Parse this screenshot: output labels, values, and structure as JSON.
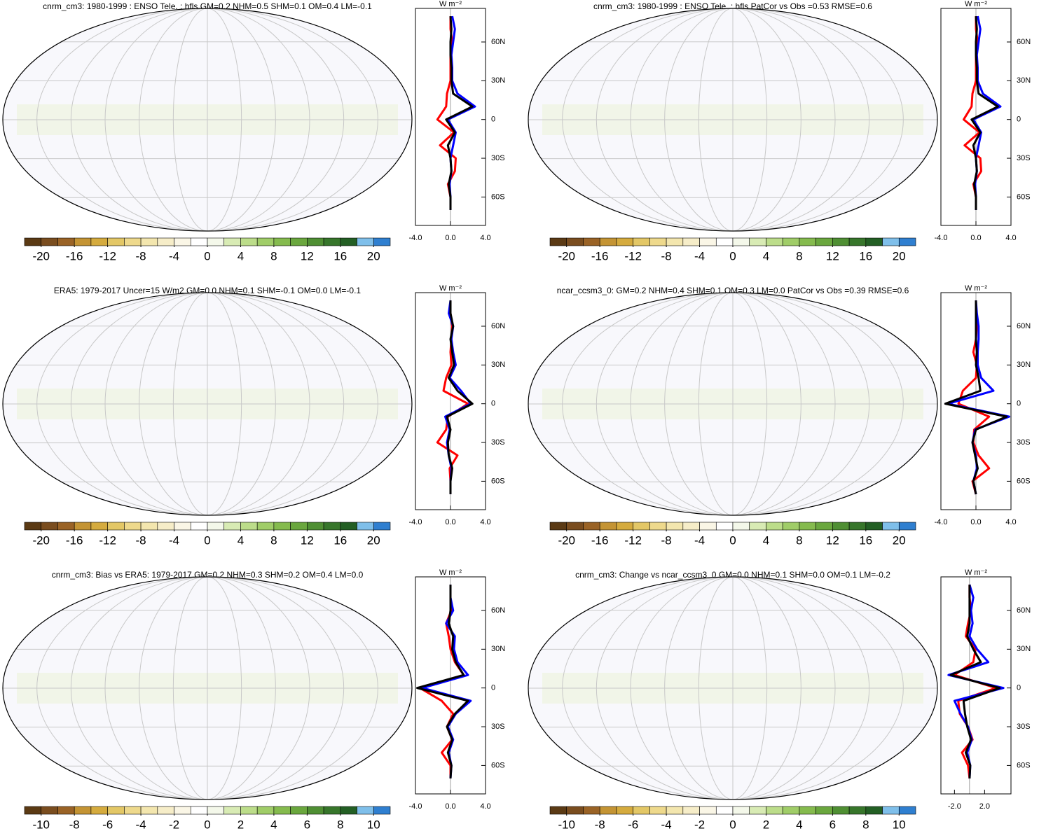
{
  "chart_data": [
    {
      "type": "line",
      "title": "cnrm_cm3: 1980-1999 : ENSO Tele. : hfls GM=0.2 NHM=0.5 SHM=0.1 OM=0.4 LM=-0.1",
      "units": "W m⁻²",
      "lat": [
        -70,
        -60,
        -50,
        -40,
        -30,
        -20,
        -10,
        0,
        10,
        20,
        30,
        40,
        50,
        60,
        70,
        80
      ],
      "series": [
        {
          "color": "#ff0000",
          "values": [
            0,
            0,
            -0.3,
            0.5,
            0.6,
            -1.2,
            0.4,
            -1.5,
            -0.5,
            -0.4,
            0,
            0,
            0,
            0.2,
            0,
            0
          ]
        },
        {
          "color": "#0000ff",
          "values": [
            0,
            0,
            -0.1,
            0.1,
            0,
            0.3,
            0.6,
            -0.3,
            2.8,
            0.8,
            0.2,
            0.2,
            0.1,
            0.3,
            0.5,
            0.2
          ]
        },
        {
          "color": "#000000",
          "values": [
            0,
            0,
            -0.2,
            0.1,
            0,
            -0.3,
            0.5,
            -0.5,
            2.5,
            0.3,
            0.1,
            0.1,
            0,
            0,
            0.1,
            0
          ]
        }
      ],
      "xlim": [
        -4,
        4
      ],
      "xticks": [
        {
          "value": -4,
          "label": "-4.0"
        },
        {
          "value": 0,
          "label": "0.0"
        },
        {
          "value": 4,
          "label": "4.0"
        }
      ],
      "ylim": [
        -82,
        86
      ],
      "yticks": [
        {
          "value": 60,
          "label": "60N"
        },
        {
          "value": 30,
          "label": "30N"
        },
        0,
        {
          "value": -30,
          "label": "30S"
        },
        {
          "value": -60,
          "label": "60S"
        }
      ],
      "colorbar": {
        "lim": [
          -22,
          22
        ],
        "ticks": [
          -20,
          -16,
          -12,
          -8,
          -4,
          0,
          4,
          8,
          12,
          16,
          20
        ],
        "colors": [
          "#5b3a14",
          "#7a4d1f",
          "#9a6326",
          "#c49434",
          "#d5ab3e",
          "#e3c766",
          "#eed98c",
          "#f3e6ae",
          "#f6edc8",
          "#faf6e6",
          "#ffffff",
          "#f4f8ea",
          "#d8ebb4",
          "#bcdd8a",
          "#a0cd68",
          "#85bb4e",
          "#6aa73e",
          "#4f8f33",
          "#37762b",
          "#235f24",
          "#7fbfea",
          "#2f7fd0"
        ]
      }
    },
    {
      "type": "line",
      "title": "cnrm_cm3: 1980-1999 : ENSO Tele. : hfls PatCor vs Obs =0.53 RMSE=0.6",
      "units": "W m⁻²",
      "lat": [
        -70,
        -60,
        -50,
        -40,
        -30,
        -20,
        -10,
        0,
        10,
        20,
        30,
        40,
        50,
        60,
        70,
        80
      ],
      "series": [
        {
          "color": "#ff0000",
          "values": [
            0,
            0,
            -0.3,
            0.6,
            0.5,
            -1.3,
            0.4,
            -1.4,
            -0.5,
            -0.4,
            0,
            0,
            0,
            0.2,
            0,
            0
          ]
        },
        {
          "color": "#0000ff",
          "values": [
            0,
            0,
            -0.1,
            0.1,
            0,
            0.3,
            0.6,
            -0.3,
            2.8,
            0.8,
            0.2,
            0.2,
            0.1,
            0.3,
            0.5,
            0.2
          ]
        },
        {
          "color": "#000000",
          "values": [
            0,
            0,
            -0.2,
            0.1,
            0,
            -0.3,
            0.5,
            -0.5,
            2.5,
            0.3,
            0.1,
            0.1,
            0,
            0,
            0.1,
            0
          ]
        }
      ],
      "xlim": [
        -4,
        4
      ],
      "xticks": [
        {
          "value": -4,
          "label": "-4.0"
        },
        {
          "value": 0,
          "label": "0.0"
        },
        {
          "value": 4,
          "label": "4.0"
        }
      ],
      "ylim": [
        -82,
        86
      ],
      "yticks": [
        {
          "value": 60,
          "label": "60N"
        },
        {
          "value": 30,
          "label": "30N"
        },
        0,
        {
          "value": -30,
          "label": "30S"
        },
        {
          "value": -60,
          "label": "60S"
        }
      ],
      "colorbar": {
        "lim": [
          -22,
          22
        ],
        "ticks": [
          -20,
          -16,
          -12,
          -8,
          -4,
          0,
          4,
          8,
          12,
          16,
          20
        ],
        "colors": [
          "#5b3a14",
          "#7a4d1f",
          "#9a6326",
          "#c49434",
          "#d5ab3e",
          "#e3c766",
          "#eed98c",
          "#f3e6ae",
          "#f6edc8",
          "#faf6e6",
          "#ffffff",
          "#f4f8ea",
          "#d8ebb4",
          "#bcdd8a",
          "#a0cd68",
          "#85bb4e",
          "#6aa73e",
          "#4f8f33",
          "#37762b",
          "#235f24",
          "#7fbfea",
          "#2f7fd0"
        ]
      }
    },
    {
      "type": "line",
      "title": "ERA5: 1979-2017 Uncer=15 W/m2 GM=0.0 NHM=0.1 SHM=-0.1 OM=0.0 LM=-0.1",
      "units": "W m⁻²",
      "lat": [
        -70,
        -60,
        -50,
        -40,
        -30,
        -20,
        -10,
        0,
        10,
        20,
        30,
        40,
        50,
        60,
        70,
        80
      ],
      "series": [
        {
          "color": "#ff0000",
          "values": [
            0,
            0,
            -0.1,
            0.8,
            -1.5,
            -0.5,
            -0.3,
            2,
            -0.8,
            -0.5,
            0.1,
            0,
            0.1,
            0.2,
            0,
            0
          ]
        },
        {
          "color": "#0000ff",
          "values": [
            0,
            0,
            0.1,
            -0.2,
            -0.4,
            -0.1,
            -0.6,
            2.3,
            1.2,
            -0.1,
            0.6,
            0.3,
            0.1,
            0.3,
            -0.2,
            0
          ]
        },
        {
          "color": "#000000",
          "values": [
            0,
            0,
            0.2,
            -0.2,
            -0.3,
            0,
            -0.4,
            2.5,
            0.8,
            -0.2,
            0.4,
            0.2,
            0,
            0.3,
            0,
            0
          ]
        }
      ],
      "xlim": [
        -4,
        4
      ],
      "xticks": [
        {
          "value": -4,
          "label": "-4.0"
        },
        {
          "value": 0,
          "label": "0.0"
        },
        {
          "value": 4,
          "label": "4.0"
        }
      ],
      "ylim": [
        -82,
        86
      ],
      "yticks": [
        {
          "value": 60,
          "label": "60N"
        },
        {
          "value": 30,
          "label": "30N"
        },
        0,
        {
          "value": -30,
          "label": "30S"
        },
        {
          "value": -60,
          "label": "60S"
        }
      ],
      "colorbar": {
        "lim": [
          -22,
          22
        ],
        "ticks": [
          -20,
          -16,
          -12,
          -8,
          -4,
          0,
          4,
          8,
          12,
          16,
          20
        ],
        "colors": [
          "#5b3a14",
          "#7a4d1f",
          "#9a6326",
          "#c49434",
          "#d5ab3e",
          "#e3c766",
          "#eed98c",
          "#f3e6ae",
          "#f6edc8",
          "#faf6e6",
          "#ffffff",
          "#f4f8ea",
          "#d8ebb4",
          "#bcdd8a",
          "#a0cd68",
          "#85bb4e",
          "#6aa73e",
          "#4f8f33",
          "#37762b",
          "#235f24",
          "#7fbfea",
          "#2f7fd0"
        ]
      }
    },
    {
      "type": "line",
      "title": "ncar_ccsm3_0: GM=0.2 NHM=0.4 SHM=0.1 OM=0.3 LM=0.0 PatCor vs Obs =0.39 RMSE=0.6",
      "units": "W m⁻²",
      "lat": [
        -70,
        -60,
        -50,
        -40,
        -30,
        -20,
        -10,
        0,
        10,
        20,
        30,
        40,
        50,
        60,
        70,
        80
      ],
      "series": [
        {
          "color": "#ff0000",
          "values": [
            0,
            -0.4,
            1.5,
            0.3,
            -0.3,
            -0.2,
            1.5,
            -2,
            -1.5,
            0,
            0.1,
            -0.3,
            0,
            0.1,
            0,
            0
          ]
        },
        {
          "color": "#0000ff",
          "values": [
            0,
            -0.3,
            0.1,
            0,
            -0.4,
            -0.1,
            3.8,
            -3.2,
            2,
            0.6,
            0.2,
            0.2,
            0.3,
            0.3,
            0.1,
            0
          ]
        },
        {
          "color": "#000000",
          "values": [
            0,
            -0.3,
            0.2,
            -0.1,
            -0.4,
            0,
            3.5,
            -3.5,
            0.5,
            0.3,
            0,
            0.1,
            0,
            0,
            0,
            0
          ]
        }
      ],
      "xlim": [
        -4,
        4
      ],
      "xticks": [
        {
          "value": -4,
          "label": "-4.0"
        },
        {
          "value": 0,
          "label": "0.0"
        },
        {
          "value": 4,
          "label": "4.0"
        }
      ],
      "ylim": [
        -82,
        86
      ],
      "yticks": [
        {
          "value": 60,
          "label": "60N"
        },
        {
          "value": 30,
          "label": "30N"
        },
        0,
        {
          "value": -30,
          "label": "30S"
        },
        {
          "value": -60,
          "label": "60S"
        }
      ],
      "colorbar": {
        "lim": [
          -22,
          22
        ],
        "ticks": [
          -20,
          -16,
          -12,
          -8,
          -4,
          0,
          4,
          8,
          12,
          16,
          20
        ],
        "colors": [
          "#5b3a14",
          "#7a4d1f",
          "#9a6326",
          "#c49434",
          "#d5ab3e",
          "#e3c766",
          "#eed98c",
          "#f3e6ae",
          "#f6edc8",
          "#faf6e6",
          "#ffffff",
          "#f4f8ea",
          "#d8ebb4",
          "#bcdd8a",
          "#a0cd68",
          "#85bb4e",
          "#6aa73e",
          "#4f8f33",
          "#37762b",
          "#235f24",
          "#7fbfea",
          "#2f7fd0"
        ]
      }
    },
    {
      "type": "line",
      "title": "cnrm_cm3: Bias vs ERA5: 1979-2017 GM=0.2 NHM=0.3 SHM=0.2 OM=0.4 LM=0.0",
      "units": "W m⁻²",
      "lat": [
        -70,
        -60,
        -50,
        -40,
        -30,
        -20,
        -10,
        0,
        10,
        20,
        30,
        40,
        50,
        60,
        70,
        80
      ],
      "series": [
        {
          "color": "#ff0000",
          "values": [
            0,
            0,
            -1,
            0.2,
            -0.4,
            0.3,
            -1,
            -3.5,
            1.5,
            0.5,
            0,
            -0.2,
            -0.5,
            0.1,
            0,
            0
          ]
        },
        {
          "color": "#0000ff",
          "values": [
            0,
            0.1,
            -0.2,
            0.3,
            -0.3,
            0.6,
            2.3,
            -3.2,
            2,
            0.8,
            0.4,
            0.5,
            -0.5,
            0.3,
            0,
            0
          ]
        },
        {
          "color": "#000000",
          "values": [
            0,
            0.1,
            -0.3,
            0.2,
            -0.4,
            0.5,
            2,
            -3.8,
            1.5,
            0.6,
            0.2,
            0.3,
            -0.2,
            0,
            0,
            0
          ]
        }
      ],
      "xlim": [
        -4,
        4
      ],
      "xticks": [
        {
          "value": -4,
          "label": "-4.0"
        },
        {
          "value": 0,
          "label": "0.0"
        },
        {
          "value": 4,
          "label": "4.0"
        }
      ],
      "ylim": [
        -82,
        86
      ],
      "yticks": [
        {
          "value": 60,
          "label": "60N"
        },
        {
          "value": 30,
          "label": "30N"
        },
        0,
        {
          "value": -30,
          "label": "30S"
        },
        {
          "value": -60,
          "label": "60S"
        }
      ],
      "colorbar": {
        "lim": [
          -11,
          11
        ],
        "ticks": [
          -10,
          -8,
          -6,
          -4,
          -2,
          0,
          2,
          4,
          6,
          8,
          10
        ],
        "colors": [
          "#5b3a14",
          "#7a4d1f",
          "#9a6326",
          "#c49434",
          "#d5ab3e",
          "#e3c766",
          "#eed98c",
          "#f3e6ae",
          "#f6edc8",
          "#faf6e6",
          "#ffffff",
          "#f4f8ea",
          "#d8ebb4",
          "#bcdd8a",
          "#a0cd68",
          "#85bb4e",
          "#6aa73e",
          "#4f8f33",
          "#37762b",
          "#235f24",
          "#7fbfea",
          "#2f7fd0"
        ]
      }
    },
    {
      "type": "line",
      "title": "cnrm_cm3: Change vs ncar_ccsm3_0 GM=0.0 NHM=0.1 SHM=0.0 OM=0.1 LM=-0.2",
      "units": "W m⁻²",
      "lat": [
        -70,
        -60,
        -50,
        -40,
        -30,
        -20,
        -10,
        0,
        10,
        20,
        30,
        40,
        50,
        60,
        70,
        80
      ],
      "series": [
        {
          "color": "#ff0000",
          "values": [
            0,
            -0.2,
            -1,
            0.4,
            -0.2,
            -1.3,
            -1.5,
            3.5,
            -2,
            0.5,
            0.8,
            -0.5,
            -0.2,
            0.2,
            0,
            0
          ]
        },
        {
          "color": "#0000ff",
          "values": [
            0,
            0.1,
            -0.3,
            0.3,
            -0.2,
            -1.2,
            -2,
            4.5,
            -2.8,
            2.5,
            1,
            0,
            0.4,
            0.2,
            0.5,
            0
          ]
        },
        {
          "color": "#000000",
          "values": [
            0,
            0.1,
            -0.5,
            0.2,
            -0.3,
            -0.6,
            -0.8,
            4,
            -2.5,
            1.5,
            0.5,
            -0.3,
            0,
            0,
            0,
            0
          ]
        }
      ],
      "xlim": [
        -3.8,
        5.5
      ],
      "xticks": [
        {
          "value": -2,
          "label": "-2.0"
        },
        {
          "value": 2,
          "label": "2.0"
        }
      ],
      "ylim": [
        -82,
        86
      ],
      "yticks": [
        {
          "value": 60,
          "label": "60N"
        },
        {
          "value": 30,
          "label": "30N"
        },
        0,
        {
          "value": -30,
          "label": "30S"
        },
        {
          "value": -60,
          "label": "60S"
        }
      ],
      "colorbar": {
        "lim": [
          -11,
          11
        ],
        "ticks": [
          -10,
          -8,
          -6,
          -4,
          -2,
          0,
          2,
          4,
          6,
          8,
          10
        ],
        "colors": [
          "#5b3a14",
          "#7a4d1f",
          "#9a6326",
          "#c49434",
          "#d5ab3e",
          "#e3c766",
          "#eed98c",
          "#f3e6ae",
          "#f6edc8",
          "#faf6e6",
          "#ffffff",
          "#f4f8ea",
          "#d8ebb4",
          "#bcdd8a",
          "#a0cd68",
          "#85bb4e",
          "#6aa73e",
          "#4f8f33",
          "#37762b",
          "#235f24",
          "#7fbfea",
          "#2f7fd0"
        ]
      }
    }
  ]
}
